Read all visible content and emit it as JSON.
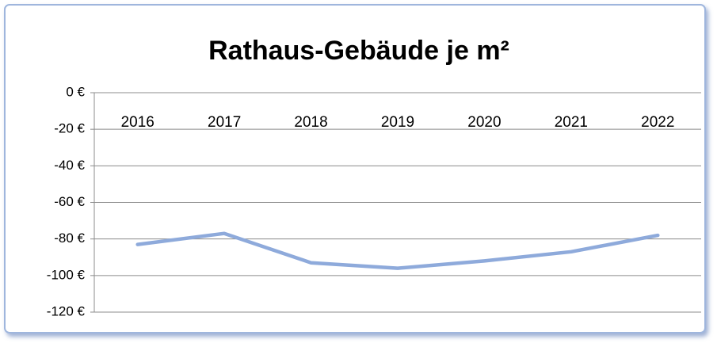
{
  "chart_data": {
    "type": "line",
    "title": "Rathaus-Gebäude je m²",
    "categories": [
      "2016",
      "2017",
      "2018",
      "2019",
      "2020",
      "2021",
      "2022"
    ],
    "values": [
      -83,
      -77,
      -93,
      -96,
      -92,
      -87,
      -78
    ],
    "color": "#8eaadb",
    "ylim": [
      -120,
      0
    ],
    "yticks": [
      {
        "value": 0,
        "label": "0 €"
      },
      {
        "value": -20,
        "label": "-20 €"
      },
      {
        "value": -40,
        "label": "-40 €"
      },
      {
        "value": -60,
        "label": "-60 €"
      },
      {
        "value": -80,
        "label": "-80 €"
      },
      {
        "value": -100,
        "label": "-100 €"
      },
      {
        "value": -120,
        "label": "-120 €"
      }
    ],
    "grid": true
  }
}
